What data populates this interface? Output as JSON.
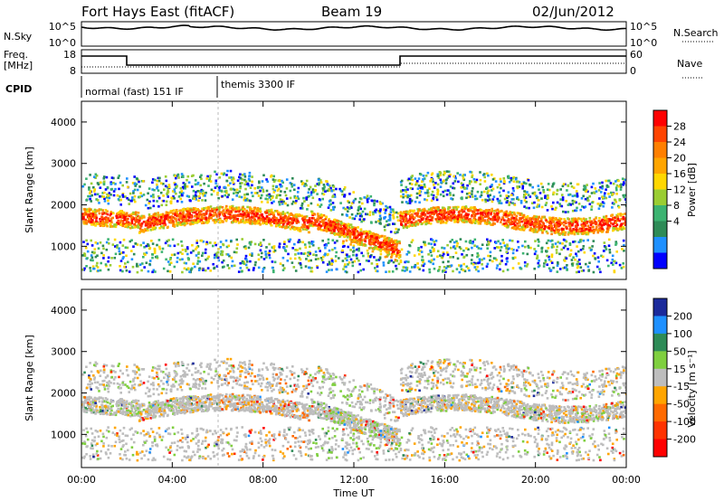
{
  "header": {
    "station": "Fort Hays East (fitACF)",
    "beam": "Beam 19",
    "date": "02/Jun/2012"
  },
  "noise_panel": {
    "left_label": "N.Sky",
    "right_label": "N.Search",
    "left_ticks": [
      "10^5",
      "10^0"
    ],
    "right_ticks": [
      "10^5",
      "10^0"
    ]
  },
  "freq_panel": {
    "left_label_1": "Freq.",
    "left_label_2": "[MHz]",
    "right_label": "Nave",
    "left_ticks": [
      "18",
      "8"
    ],
    "right_ticks": [
      "60",
      "0"
    ]
  },
  "cpid_panel": {
    "label": "CPID",
    "segments": [
      "normal (fast) 151 IF",
      "themis 3300 IF"
    ]
  },
  "chart_data": [
    {
      "type": "heatmap",
      "title": "",
      "xlabel": "",
      "ylabel": "Slant Range [km]",
      "colorbar_label": "Power [dB]",
      "colorbar_ticks": [
        "28",
        "24",
        "20",
        "16",
        "12",
        "8",
        "4"
      ],
      "colorbar_colors": [
        "#ff0000",
        "#ff4400",
        "#ff7f00",
        "#ffa500",
        "#ffd700",
        "#9acd32",
        "#3cb371",
        "#2e8b57",
        "#1e90ff",
        "#0000ff"
      ],
      "y_ticks": [
        "4000",
        "3000",
        "2000",
        "1000"
      ],
      "ylim": [
        200,
        4500
      ],
      "xlim": [
        "00:00",
        "24:00"
      ],
      "echo_bands_km": [
        {
          "start": "00:00",
          "end": "02:30",
          "range_center": 1800,
          "dominant": "red"
        },
        {
          "start": "02:30",
          "end": "10:00",
          "range_center": 1700,
          "dominant": "orange"
        },
        {
          "start": "10:00",
          "end": "14:00",
          "range_center": 1400,
          "dominant": "red"
        },
        {
          "start": "14:00",
          "end": "24:00",
          "range_center": 1700,
          "dominant": "red"
        }
      ]
    },
    {
      "type": "heatmap",
      "title": "",
      "xlabel": "Time UT",
      "ylabel": "Slant Range [km]",
      "colorbar_label": "Velocity [m s⁻¹]",
      "colorbar_ticks": [
        "200",
        "100",
        "50",
        "15",
        "-15",
        "-50",
        "-100",
        "-200"
      ],
      "colorbar_colors": [
        "#1b2a9b",
        "#1e90ff",
        "#2e8b57",
        "#7fcf3f",
        "#bdbdbd",
        "#ffa500",
        "#ff6a00",
        "#ff3300",
        "#ff0000"
      ],
      "y_ticks": [
        "4000",
        "3000",
        "2000",
        "1000"
      ],
      "x_ticks": [
        "00:00",
        "04:00",
        "08:00",
        "12:00",
        "16:00",
        "20:00",
        "00:00"
      ],
      "ylim": [
        200,
        4500
      ],
      "xlim": [
        "00:00",
        "24:00"
      ],
      "dominant_velocity_class": "-15 to 15"
    }
  ]
}
